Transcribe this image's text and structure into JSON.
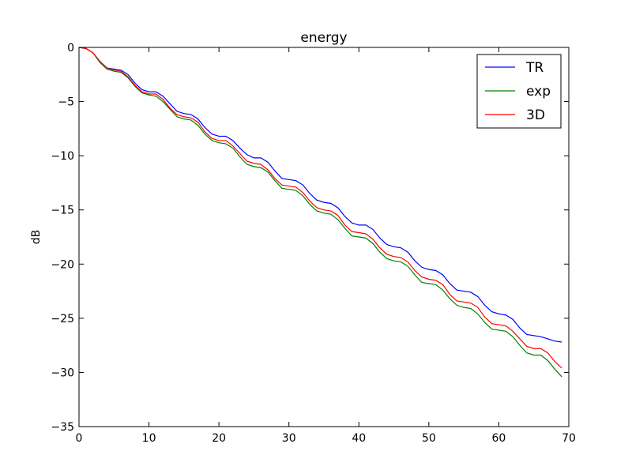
{
  "chart_data": {
    "type": "line",
    "title": "energy",
    "xlabel": "",
    "ylabel": "dB",
    "xlim": [
      0,
      70
    ],
    "ylim": [
      -35,
      0
    ],
    "xticks": [
      0,
      10,
      20,
      30,
      40,
      50,
      60,
      70
    ],
    "yticks": [
      0,
      -5,
      -10,
      -15,
      -20,
      -25,
      -30,
      -35
    ],
    "ytick_labels": [
      "0",
      "−5",
      "−10",
      "−15",
      "−20",
      "−25",
      "−30",
      "−35"
    ],
    "grid": false,
    "legend_position": "top-right",
    "x": [
      0,
      1,
      2,
      3,
      4,
      5,
      6,
      7,
      8,
      9,
      10,
      11,
      12,
      13,
      14,
      15,
      16,
      17,
      18,
      19,
      20,
      21,
      22,
      23,
      24,
      25,
      26,
      27,
      28,
      29,
      30,
      31,
      32,
      33,
      34,
      35,
      36,
      37,
      38,
      39,
      40,
      41,
      42,
      43,
      44,
      45,
      46,
      47,
      48,
      49,
      50,
      51,
      52,
      53,
      54,
      55,
      56,
      57,
      58,
      59,
      60,
      61,
      62,
      63,
      64,
      65,
      66,
      67,
      68,
      69
    ],
    "series": [
      {
        "name": "TR",
        "color": "#0000ff",
        "values": [
          0,
          -0.1,
          -0.5,
          -1.3,
          -1.9,
          -2.0,
          -2.1,
          -2.5,
          -3.3,
          -3.9,
          -4.1,
          -4.1,
          -4.5,
          -5.2,
          -5.9,
          -6.1,
          -6.2,
          -6.6,
          -7.4,
          -8.0,
          -8.2,
          -8.2,
          -8.6,
          -9.3,
          -9.9,
          -10.2,
          -10.2,
          -10.6,
          -11.4,
          -12.1,
          -12.2,
          -12.3,
          -12.7,
          -13.5,
          -14.1,
          -14.3,
          -14.4,
          -14.8,
          -15.6,
          -16.2,
          -16.4,
          -16.4,
          -16.8,
          -17.6,
          -18.2,
          -18.4,
          -18.5,
          -18.9,
          -19.7,
          -20.3,
          -20.5,
          -20.6,
          -21.0,
          -21.8,
          -22.4,
          -22.5,
          -22.6,
          -23.0,
          -23.8,
          -24.4,
          -24.6,
          -24.7,
          -25.1,
          -25.9,
          -26.5,
          -26.6,
          -26.7,
          -26.9,
          -27.1,
          -27.2
        ]
      },
      {
        "name": "exp",
        "color": "#008000",
        "values": [
          0,
          -0.1,
          -0.5,
          -1.4,
          -2.0,
          -2.2,
          -2.3,
          -2.8,
          -3.6,
          -4.2,
          -4.4,
          -4.5,
          -5.0,
          -5.7,
          -6.4,
          -6.6,
          -6.7,
          -7.2,
          -8.0,
          -8.6,
          -8.8,
          -8.9,
          -9.3,
          -10.1,
          -10.8,
          -11.0,
          -11.1,
          -11.5,
          -12.3,
          -13.0,
          -13.1,
          -13.2,
          -13.7,
          -14.5,
          -15.1,
          -15.3,
          -15.4,
          -15.9,
          -16.7,
          -17.4,
          -17.5,
          -17.6,
          -18.1,
          -18.9,
          -19.5,
          -19.7,
          -19.8,
          -20.2,
          -21.0,
          -21.7,
          -21.8,
          -21.9,
          -22.4,
          -23.2,
          -23.8,
          -24.0,
          -24.1,
          -24.6,
          -25.4,
          -26.0,
          -26.1,
          -26.2,
          -26.7,
          -27.5,
          -28.2,
          -28.4,
          -28.4,
          -28.9,
          -29.7,
          -30.4
        ]
      },
      {
        "name": "3D",
        "color": "#ff0000",
        "values": [
          0,
          -0.1,
          -0.5,
          -1.3,
          -1.9,
          -2.1,
          -2.2,
          -2.7,
          -3.5,
          -4.1,
          -4.3,
          -4.3,
          -4.8,
          -5.6,
          -6.2,
          -6.4,
          -6.5,
          -6.9,
          -7.8,
          -8.4,
          -8.6,
          -8.6,
          -9.1,
          -9.8,
          -10.5,
          -10.7,
          -10.8,
          -11.3,
          -12.1,
          -12.7,
          -12.8,
          -12.9,
          -13.4,
          -14.2,
          -14.8,
          -15.0,
          -15.1,
          -15.5,
          -16.4,
          -17.0,
          -17.1,
          -17.2,
          -17.7,
          -18.5,
          -19.1,
          -19.3,
          -19.4,
          -19.8,
          -20.6,
          -21.2,
          -21.4,
          -21.5,
          -21.9,
          -22.8,
          -23.4,
          -23.5,
          -23.6,
          -24.0,
          -24.9,
          -25.5,
          -25.6,
          -25.7,
          -26.2,
          -26.9,
          -27.6,
          -27.8,
          -27.8,
          -28.2,
          -29.0,
          -29.6
        ]
      }
    ]
  }
}
